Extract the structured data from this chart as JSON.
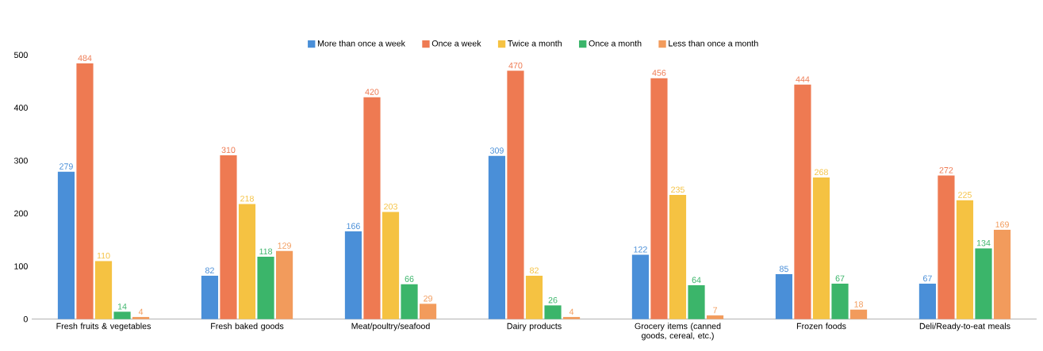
{
  "chart_data": {
    "type": "bar",
    "categories": [
      "Fresh fruits & vegetables",
      "Fresh baked goods",
      "Meat/poultry/seafood",
      "Dairy products",
      "Grocery items (canned goods, cereal, etc.)",
      "Frozen foods",
      "Deli/Ready-to-eat meals"
    ],
    "series": [
      {
        "name": "More than once a week",
        "color": "#4a8fd8",
        "values": [
          279,
          82,
          166,
          309,
          122,
          85,
          67
        ]
      },
      {
        "name": "Once a week",
        "color": "#ee7a52",
        "values": [
          484,
          310,
          420,
          470,
          456,
          444,
          272
        ]
      },
      {
        "name": "Twice a month",
        "color": "#f5c242",
        "values": [
          110,
          218,
          203,
          82,
          235,
          268,
          225
        ]
      },
      {
        "name": "Once a month",
        "color": "#3bb56a",
        "values": [
          14,
          118,
          66,
          26,
          64,
          67,
          134
        ]
      },
      {
        "name": "Less than once a month",
        "color": "#f29b5c",
        "values": [
          4,
          129,
          29,
          4,
          7,
          18,
          169
        ]
      }
    ],
    "ylim": [
      0,
      500
    ],
    "yticks": [
      0,
      100,
      200,
      300,
      400,
      500
    ],
    "grid": false,
    "legend": "top",
    "data_labels": true
  }
}
